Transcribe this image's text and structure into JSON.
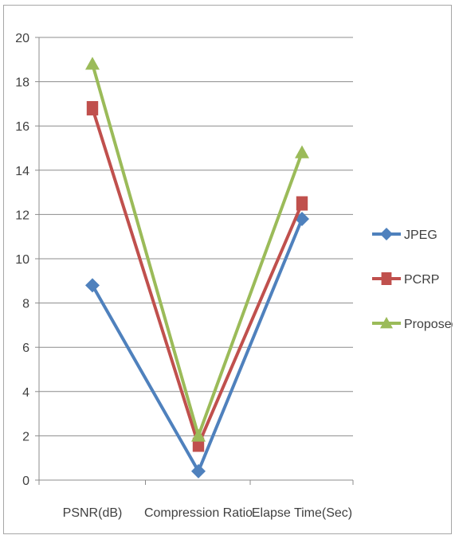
{
  "chart_data": {
    "type": "line",
    "title": "",
    "xlabel": "",
    "ylabel": "",
    "categories": [
      "PSNR(dB)",
      "Compression Ratio",
      "Elapse Time(Sec)"
    ],
    "ylim": [
      0,
      20
    ],
    "y_ticks": [
      "0",
      "2",
      "4",
      "6",
      "8",
      "10",
      "12",
      "14",
      "16",
      "18",
      "20"
    ],
    "grid": true,
    "legend_position": "right",
    "series": [
      {
        "name": "JPEG",
        "values": [
          8.8,
          0.4,
          11.8
        ],
        "color": "#4f81bd",
        "marker": "diamond"
      },
      {
        "name": "PCRP",
        "values": [
          16.8,
          1.6,
          12.5
        ],
        "color": "#c0504d",
        "marker": "square"
      },
      {
        "name": "Proposed",
        "values": [
          18.8,
          2.0,
          14.8
        ],
        "color": "#9bbb59",
        "marker": "triangle"
      }
    ]
  }
}
